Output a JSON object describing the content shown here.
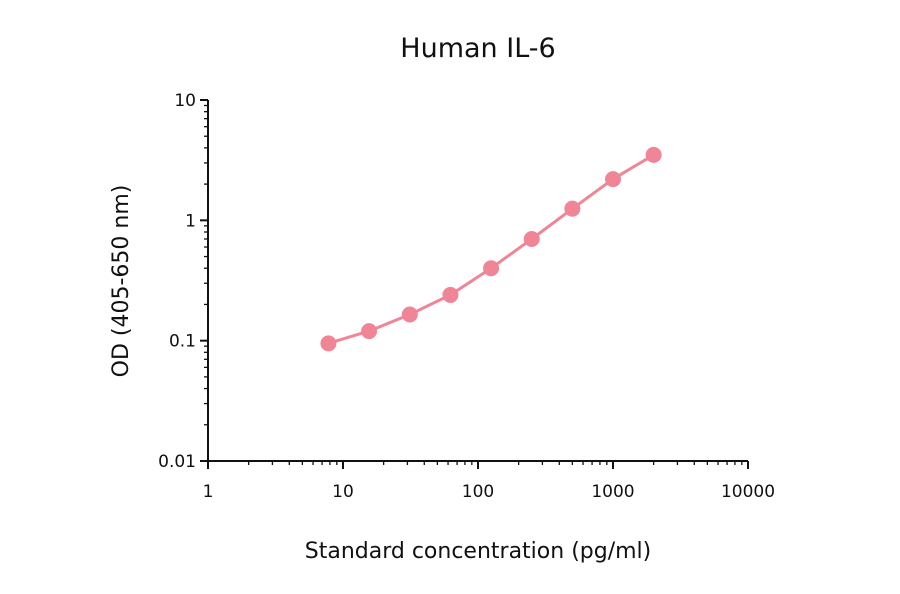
{
  "chart_data": {
    "type": "line",
    "title": "Human IL-6",
    "xlabel": "Standard concentration (pg/ml)",
    "ylabel": "OD (405-650 nm)",
    "x_scale": "log",
    "y_scale": "log",
    "xlim": [
      1,
      10000
    ],
    "ylim": [
      0.01,
      10
    ],
    "x_ticks": [
      "1",
      "10",
      "100",
      "1000",
      "10000"
    ],
    "y_ticks": [
      "0.01",
      "0.1",
      "1",
      "10"
    ],
    "grid": false,
    "legend": "none",
    "series": [
      {
        "color": "#f08596",
        "marker": "circle",
        "points": [
          {
            "x": 7.8,
            "y": 0.095
          },
          {
            "x": 15.6,
            "y": 0.12
          },
          {
            "x": 31.25,
            "y": 0.165
          },
          {
            "x": 62.5,
            "y": 0.24
          },
          {
            "x": 125,
            "y": 0.4
          },
          {
            "x": 250,
            "y": 0.7
          },
          {
            "x": 500,
            "y": 1.25
          },
          {
            "x": 1000,
            "y": 2.2
          },
          {
            "x": 2000,
            "y": 3.5
          }
        ]
      }
    ]
  }
}
